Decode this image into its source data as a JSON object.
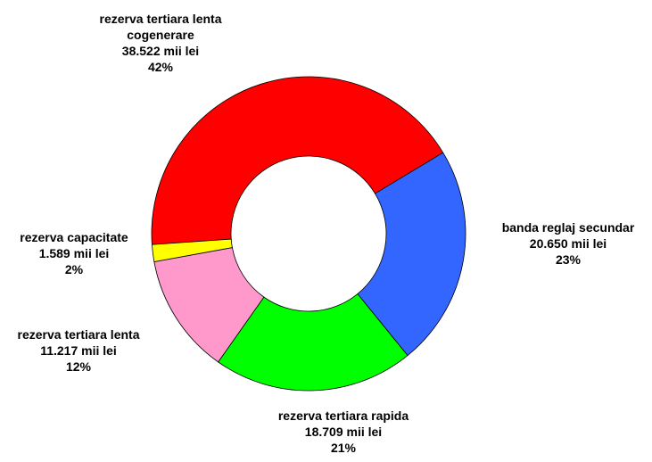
{
  "chart_data": {
    "type": "donut",
    "categories": [
      "rezerva tertiara lenta cogenerare",
      "banda reglaj secundar",
      "rezerva tertiara rapida",
      "rezerva tertiara lenta",
      "rezerva capacitate"
    ],
    "values": [
      38522,
      20650,
      18709,
      11217,
      1589
    ],
    "value_labels": [
      "38.522 mii lei",
      "20.650 mii lei",
      "18.709 mii lei",
      "11.217 mii lei",
      "1.589 mii lei"
    ],
    "percents": [
      42,
      23,
      21,
      12,
      2
    ],
    "percent_labels": [
      "42%",
      "23%",
      "21%",
      "12%",
      "2%"
    ],
    "colors": [
      "#ff0000",
      "#3366ff",
      "#00ff00",
      "#ff99cc",
      "#ffff00"
    ]
  }
}
